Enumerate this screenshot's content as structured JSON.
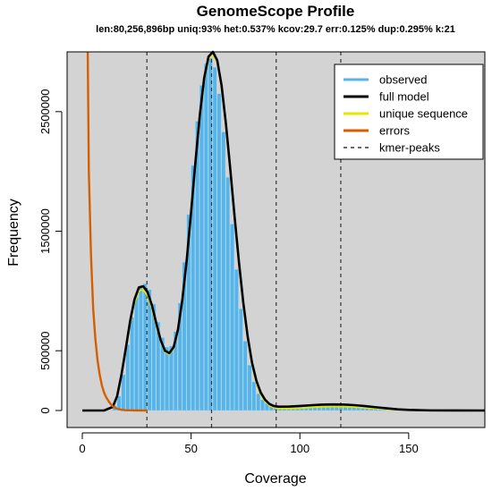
{
  "chart_data": {
    "type": "bar",
    "title": "GenomeScope Profile",
    "subtitle": "len:80,256,896bp uniq:93%  het:0.537% kcov:29.7 err:0.125%  dup:0.295%  k:21",
    "xlabel": "Coverage",
    "ylabel": "Frequency",
    "xlim": [
      0,
      185
    ],
    "ylim": [
      0,
      3000000
    ],
    "x_ticks": [
      0,
      50,
      100,
      150
    ],
    "y_ticks": [
      0,
      500000,
      1500000,
      2500000
    ],
    "y_tick_labels": [
      "0",
      "500000",
      "1500000",
      "2500000"
    ],
    "grid": false,
    "legend_position": "top-right",
    "kmer_peaks": [
      29.7,
      59.4,
      89.1,
      118.8
    ],
    "series": [
      {
        "name": "observed",
        "color": "#56b4e9",
        "x": [
          15,
          17,
          19,
          21,
          23,
          25,
          27,
          29,
          31,
          33,
          35,
          37,
          39,
          41,
          43,
          45,
          47,
          49,
          51,
          53,
          55,
          57,
          59,
          61,
          63,
          65,
          67,
          69,
          71,
          73,
          75,
          77,
          79,
          81,
          83,
          85,
          87,
          89,
          91,
          93,
          95,
          97,
          99,
          101,
          103,
          105,
          107,
          109,
          111,
          113,
          115,
          117,
          119,
          121,
          123,
          125,
          127,
          129,
          131,
          133,
          135,
          137,
          139
        ],
        "values": [
          40000,
          120000,
          300000,
          550000,
          780000,
          950000,
          1040000,
          1060000,
          1010000,
          890000,
          740000,
          610000,
          530000,
          540000,
          660000,
          900000,
          1240000,
          1640000,
          2050000,
          2420000,
          2720000,
          2900000,
          2950000,
          2870000,
          2650000,
          2330000,
          1950000,
          1560000,
          1180000,
          850000,
          580000,
          380000,
          240000,
          140000,
          90000,
          60000,
          45000,
          38000,
          35000,
          34000,
          35000,
          37000,
          39000,
          42000,
          44000,
          46000,
          48000,
          49000,
          50000,
          50000,
          49000,
          48000,
          46000,
          43000,
          40000,
          36000,
          32000,
          28000,
          24000,
          20000,
          16000,
          12000,
          9000
        ]
      },
      {
        "name": "full model",
        "color": "#000000",
        "x": [
          0,
          5,
          10,
          14,
          16,
          18,
          20,
          22,
          24,
          26,
          28,
          30,
          32,
          34,
          36,
          38,
          40,
          42,
          44,
          46,
          48,
          50,
          52,
          54,
          56,
          58,
          60,
          62,
          64,
          66,
          68,
          70,
          72,
          74,
          76,
          78,
          80,
          82,
          84,
          86,
          88,
          90,
          95,
          100,
          105,
          110,
          115,
          120,
          125,
          130,
          135,
          140,
          145,
          150,
          160,
          170,
          185
        ],
        "values": [
          0,
          0,
          0,
          30000,
          120000,
          300000,
          520000,
          750000,
          930000,
          1030000,
          1040000,
          990000,
          880000,
          730000,
          590000,
          500000,
          480000,
          530000,
          680000,
          930000,
          1260000,
          1660000,
          2080000,
          2470000,
          2780000,
          2960000,
          3000000,
          2930000,
          2720000,
          2400000,
          2020000,
          1620000,
          1240000,
          900000,
          620000,
          400000,
          250000,
          150000,
          90000,
          55000,
          38000,
          32000,
          33000,
          38000,
          44000,
          49000,
          51000,
          50000,
          45000,
          37000,
          27000,
          18000,
          10000,
          5000,
          1000,
          200,
          0
        ]
      },
      {
        "name": "unique sequence",
        "color": "#e6e600",
        "x": [
          14,
          16,
          18,
          20,
          22,
          24,
          26,
          28,
          30,
          32,
          34,
          36,
          38,
          40,
          42,
          44,
          46,
          48,
          50,
          52,
          54,
          56,
          58,
          60,
          62,
          64,
          66,
          68,
          70,
          72,
          74,
          76,
          78,
          80,
          82,
          84,
          86,
          88,
          90,
          95,
          100,
          105,
          110,
          115,
          120,
          125,
          130,
          135,
          140,
          150
        ],
        "values": [
          25000,
          110000,
          290000,
          500000,
          730000,
          900000,
          1000000,
          1010000,
          960000,
          850000,
          710000,
          580000,
          490000,
          470000,
          520000,
          670000,
          910000,
          1240000,
          1640000,
          2060000,
          2450000,
          2760000,
          2940000,
          2980000,
          2910000,
          2700000,
          2380000,
          2000000,
          1600000,
          1220000,
          880000,
          600000,
          380000,
          230000,
          130000,
          75000,
          42000,
          25000,
          18000,
          17000,
          20000,
          26000,
          31000,
          33000,
          33000,
          29000,
          23000,
          16000,
          10000,
          3000
        ]
      },
      {
        "name": "errors",
        "color": "#d55e00",
        "x": [
          2.5,
          3,
          4,
          5,
          6,
          7,
          8,
          9,
          10,
          11,
          12,
          13,
          14,
          16,
          18,
          20,
          25,
          30
        ],
        "values": [
          3000000,
          2000000,
          1300000,
          850000,
          600000,
          420000,
          300000,
          210000,
          150000,
          110000,
          80000,
          55000,
          35000,
          15000,
          6000,
          2000,
          300,
          0
        ]
      }
    ],
    "legend": [
      {
        "label": "observed",
        "style": "line",
        "color": "#56b4e9"
      },
      {
        "label": "full model",
        "style": "line",
        "color": "#000000"
      },
      {
        "label": "unique sequence",
        "style": "line",
        "color": "#e6e600"
      },
      {
        "label": "errors",
        "style": "line",
        "color": "#d55e00"
      },
      {
        "label": "kmer-peaks",
        "style": "dashed",
        "color": "#333333"
      }
    ]
  }
}
